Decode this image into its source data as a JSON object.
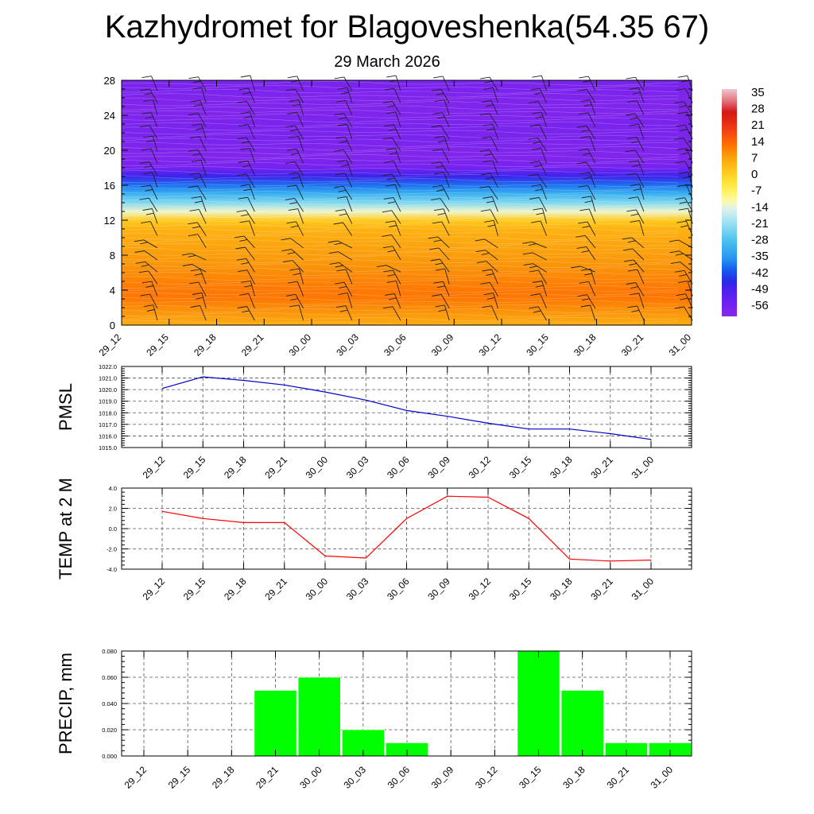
{
  "title": "Kazhydromet for Blagoveshenka(54.35 67)",
  "subtitle": "29 March 2026",
  "chart_data": [
    {
      "type": "heatmap",
      "name": "temperature-profile",
      "title": "",
      "xlabel": "",
      "ylabel": "",
      "categories": [
        "29_12",
        "29_15",
        "29_18",
        "29_21",
        "30_00",
        "30_03",
        "30_06",
        "30_09",
        "30_12",
        "30_15",
        "30_18",
        "30_21",
        "31_00"
      ],
      "y_ticks": [
        0,
        4,
        8,
        12,
        16,
        20,
        24,
        28
      ],
      "ylim": [
        0,
        28
      ],
      "colorbar_labels": [
        35,
        28,
        21,
        14,
        7,
        0,
        -7,
        -14,
        -21,
        -28,
        -35,
        -42,
        -49,
        -56
      ],
      "colorbar_range": [
        -60,
        38
      ],
      "profile_height": [
        0,
        1,
        2,
        3,
        4,
        5,
        6,
        7,
        8,
        9,
        10,
        11,
        12,
        13,
        14,
        15,
        16,
        17,
        18,
        19,
        20,
        21,
        22,
        23,
        24,
        25,
        26,
        27,
        28
      ],
      "profile_temp": [
        7,
        9,
        11,
        13,
        13,
        12,
        11,
        10,
        9,
        8,
        7,
        6,
        2,
        -12,
        -22,
        -30,
        -38,
        -47,
        -56,
        -58,
        -58,
        -57,
        -57,
        -57,
        -58,
        -58,
        -58,
        -57,
        -57
      ],
      "wind_barbs": true
    },
    {
      "type": "line",
      "name": "pmsl",
      "title": "",
      "xlabel": "",
      "ylabel": "PMSL",
      "categories": [
        "29_12",
        "29_15",
        "29_18",
        "29_21",
        "30_00",
        "30_03",
        "30_06",
        "30_09",
        "30_12",
        "30_15",
        "30_18",
        "30_21",
        "31_00"
      ],
      "values": [
        1020.1,
        1021.1,
        1020.8,
        1020.4,
        1019.8,
        1019.1,
        1018.2,
        1017.7,
        1017.1,
        1016.6,
        1016.6,
        1016.2,
        1015.7
      ],
      "ylim": [
        1015.0,
        1022.0
      ],
      "y_ticks": [
        "1015.0",
        "1016.0",
        "1017.0",
        "1018.0",
        "1019.0",
        "1020.0",
        "1021.0",
        "1022.0"
      ],
      "color": "#0000cc"
    },
    {
      "type": "line",
      "name": "temp-2m",
      "title": "",
      "xlabel": "",
      "ylabel": "TEMP at 2 M",
      "categories": [
        "29_12",
        "29_15",
        "29_18",
        "29_21",
        "30_00",
        "30_03",
        "30_06",
        "30_09",
        "30_12",
        "30_15",
        "30_18",
        "30_21",
        "31_00"
      ],
      "values": [
        1.7,
        1.0,
        0.6,
        0.6,
        -2.7,
        -2.9,
        1.0,
        3.2,
        3.1,
        1.0,
        -3.0,
        -3.2,
        -3.1
      ],
      "ylim": [
        -4.0,
        4.0
      ],
      "y_ticks": [
        "-4.0",
        "-2.0",
        "0.0",
        "2.0",
        "4.0"
      ],
      "color": "#ff0000"
    },
    {
      "type": "bar",
      "name": "precip",
      "title": "",
      "xlabel": "",
      "ylabel": "PRECIP, mm",
      "categories": [
        "29_12",
        "29_15",
        "29_18",
        "29_21",
        "30_00",
        "30_03",
        "30_06",
        "30_09",
        "30_12",
        "30_15",
        "30_18",
        "30_21",
        "31_00"
      ],
      "values": [
        0,
        0,
        0,
        0.05,
        0.06,
        0.02,
        0.01,
        0,
        0,
        0.08,
        0.05,
        0.01,
        0.01
      ],
      "ylim": [
        0,
        0.08
      ],
      "y_ticks": [
        "0.000",
        "0.020",
        "0.040",
        "0.060",
        "0.080"
      ],
      "color": "#00ff00"
    }
  ]
}
